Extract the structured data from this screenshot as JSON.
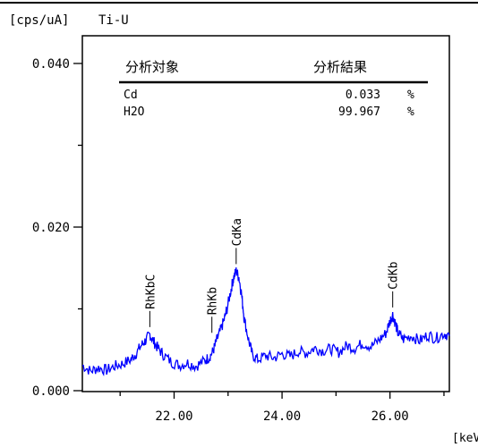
{
  "chart_data": {
    "type": "line",
    "title": "Ti-U",
    "ylabel": "[cps/uA]",
    "xlabel": "[keV]",
    "xlim": [
      20.3,
      27.1
    ],
    "ylim": [
      0,
      0.042
    ],
    "yticks": [
      0.0,
      0.02,
      0.04
    ],
    "ytick_labels": [
      "0.000",
      "0.020",
      "0.040"
    ],
    "xticks": [
      22.0,
      24.0,
      26.0
    ],
    "xtick_labels": [
      "22.00",
      "24.00",
      "26.00"
    ],
    "minor_yticks": [
      0.01,
      0.03
    ],
    "minor_xticks": [
      21.0,
      23.0,
      25.0,
      27.0
    ],
    "grid": false,
    "line_color": "#0000ff",
    "series": [
      {
        "x": [
          20.3,
          20.45,
          20.6,
          20.75,
          20.9,
          21.05,
          21.2,
          21.3,
          21.4,
          21.48,
          21.55,
          21.62,
          21.7,
          21.8,
          21.95,
          22.1,
          22.25,
          22.4,
          22.55,
          22.65,
          22.72,
          22.78,
          22.85,
          22.92,
          22.98,
          23.05,
          23.1,
          23.15,
          23.2,
          23.25,
          23.3,
          23.38,
          23.45,
          23.55,
          23.7,
          23.85,
          24.0,
          24.15,
          24.3,
          24.45,
          24.6,
          24.75,
          24.9,
          25.05,
          25.2,
          25.35,
          25.5,
          25.65,
          25.8,
          25.92,
          26.0,
          26.05,
          26.1,
          26.15,
          26.25,
          26.4,
          26.55,
          26.7,
          26.85,
          27.0,
          27.1
        ],
        "y": [
          0.0031,
          0.0024,
          0.0028,
          0.0025,
          0.003,
          0.0033,
          0.0038,
          0.0046,
          0.0056,
          0.0062,
          0.0069,
          0.006,
          0.0052,
          0.0044,
          0.0035,
          0.0031,
          0.0034,
          0.003,
          0.0036,
          0.0041,
          0.0048,
          0.006,
          0.0072,
          0.0085,
          0.01,
          0.0122,
          0.0138,
          0.0146,
          0.0139,
          0.0118,
          0.0088,
          0.0062,
          0.0044,
          0.0038,
          0.0043,
          0.004,
          0.0045,
          0.0042,
          0.0048,
          0.0046,
          0.0052,
          0.0049,
          0.0051,
          0.0047,
          0.0055,
          0.0052,
          0.0058,
          0.0054,
          0.0062,
          0.007,
          0.0085,
          0.0093,
          0.0082,
          0.007,
          0.0063,
          0.0067,
          0.0061,
          0.0068,
          0.0064,
          0.007,
          0.0067
        ]
      }
    ],
    "annotations": [
      {
        "text": "RhKbC",
        "x": 21.55,
        "y": 0.0069
      },
      {
        "text": "RhKb",
        "x": 22.7,
        "y": 0.0062
      },
      {
        "text": "CdKa",
        "x": 23.15,
        "y": 0.0146
      },
      {
        "text": "CdKb",
        "x": 26.05,
        "y": 0.0093
      }
    ],
    "results_table": {
      "headers": [
        "分析対象",
        "分析結果"
      ],
      "rows": [
        {
          "name": "Cd",
          "value": "0.033",
          "unit": "%"
        },
        {
          "name": "H2O",
          "value": "99.967",
          "unit": "%"
        }
      ]
    }
  }
}
